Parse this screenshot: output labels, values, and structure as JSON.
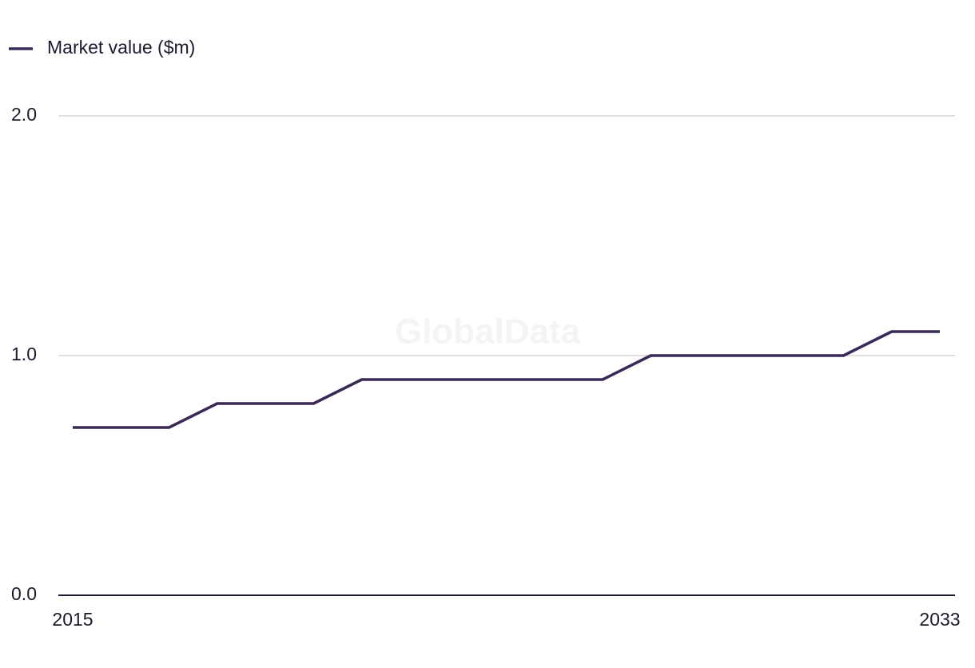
{
  "chart_data": {
    "type": "line",
    "legend": "top-left",
    "watermark": "GlobalData",
    "x": [
      2015,
      2016,
      2017,
      2018,
      2019,
      2020,
      2021,
      2022,
      2023,
      2024,
      2025,
      2026,
      2027,
      2028,
      2029,
      2030,
      2031,
      2032,
      2033
    ],
    "series": [
      {
        "name": "Market value ($m)",
        "color": "#3a2856",
        "values": [
          0.7,
          0.7,
          0.7,
          0.8,
          0.8,
          0.8,
          0.9,
          0.9,
          0.9,
          0.9,
          0.9,
          0.9,
          1.0,
          1.0,
          1.0,
          1.0,
          1.0,
          1.1,
          1.1
        ]
      }
    ],
    "xlim": [
      2015,
      2033
    ],
    "xticks": [
      2015,
      2033
    ],
    "ylim": [
      0,
      2
    ],
    "yticks": [
      {
        "value": 0,
        "label": "0.0"
      },
      {
        "value": 1,
        "label": "1.0"
      },
      {
        "value": 2,
        "label": "2.0"
      }
    ],
    "grid": true
  }
}
